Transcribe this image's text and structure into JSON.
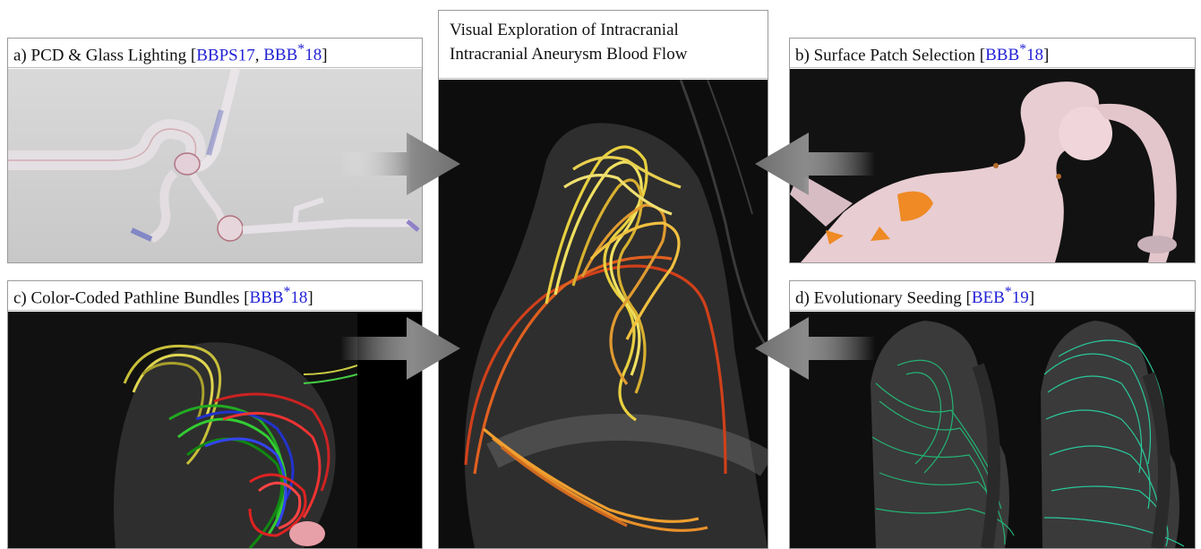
{
  "center": {
    "title_line1": "Visual Exploration of Intracranial",
    "title_line2": "Intracranial Aneurysm Blood Flow"
  },
  "panels": {
    "a": {
      "label": "a) PCD & Glass Lighting [",
      "ref1": "BBPS17",
      "sep": ", ",
      "ref2": "BBB",
      "ref2_sup": "*",
      "ref2_year": "18",
      "close": "]"
    },
    "b": {
      "label": "b) Surface Patch Selection [",
      "ref": "BBB",
      "ref_sup": "*",
      "ref_year": "18",
      "close": "]"
    },
    "c": {
      "label": "c) Color-Coded Pathline Bundles [",
      "ref": "BBB",
      "ref_sup": "*",
      "ref_year": "18",
      "close": "]"
    },
    "d": {
      "label": "d) Evolutionary Seeding [",
      "ref": "BEB",
      "ref_sup": "*",
      "ref_year": "19",
      "close": "]"
    }
  },
  "colors": {
    "citation": "#2323d6",
    "border": "#9a9a9a",
    "render_background": "#111111",
    "glass_background": "#d0d0d0",
    "arrow": "#808080"
  }
}
